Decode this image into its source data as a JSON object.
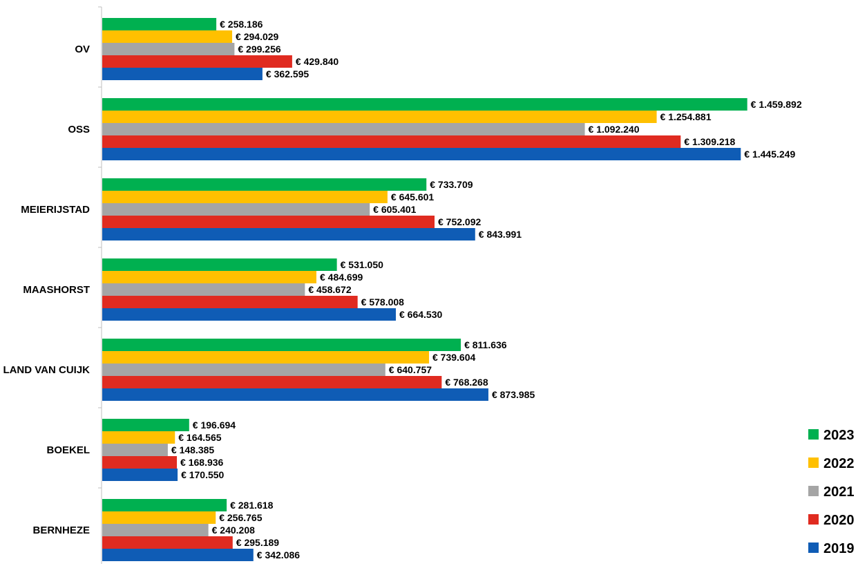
{
  "chart_data": {
    "type": "bar",
    "orientation": "horizontal",
    "categories": [
      "OV",
      "OSS",
      "MEIERIJSTAD",
      "MAASHORST",
      "LAND VAN CUIJK",
      "BOEKEL",
      "BERNHEZE"
    ],
    "series": [
      {
        "name": "2023",
        "color": "#00b050",
        "values": [
          258186,
          1459892,
          733709,
          531050,
          811636,
          196694,
          281618
        ],
        "labels": [
          "€ 258.186",
          "€ 1.459.892",
          "€ 733.709",
          "€ 531.050",
          "€ 811.636",
          "€ 196.694",
          "€ 281.618"
        ]
      },
      {
        "name": "2022",
        "color": "#ffc000",
        "values": [
          294029,
          1254881,
          645601,
          484699,
          739604,
          164565,
          256765
        ],
        "labels": [
          "€ 294.029",
          "€ 1.254.881",
          "€ 645.601",
          "€ 484.699",
          "€ 739.604",
          "€ 164.565",
          "€ 256.765"
        ]
      },
      {
        "name": "2021",
        "color": "#a5a5a5",
        "values": [
          299256,
          1092240,
          605401,
          458672,
          640757,
          148385,
          240208
        ],
        "labels": [
          "€ 299.256",
          "€ 1.092.240",
          "€ 605.401",
          "€ 458.672",
          "€ 640.757",
          "€ 148.385",
          "€ 240.208"
        ]
      },
      {
        "name": "2020",
        "color": "#e02b20",
        "values": [
          429840,
          1309218,
          752092,
          578008,
          768268,
          168936,
          295189
        ],
        "labels": [
          "€ 429.840",
          "€ 1.309.218",
          "€ 752.092",
          "€ 578.008",
          "€ 768.268",
          "€ 168.936",
          "€ 295.189"
        ]
      },
      {
        "name": "2019",
        "color": "#0f5cb5",
        "values": [
          362595,
          1445249,
          843991,
          664530,
          873985,
          170550,
          342086
        ],
        "labels": [
          "€ 362.595",
          "€ 1.445.249",
          "€ 843.991",
          "€ 664.530",
          "€ 873.985",
          "€ 170.550",
          "€ 342.086"
        ]
      }
    ],
    "xlim": [
      0,
      1500000
    ],
    "grid": false,
    "legend_position": "bottom-right",
    "title": "",
    "xlabel": "",
    "ylabel": ""
  }
}
